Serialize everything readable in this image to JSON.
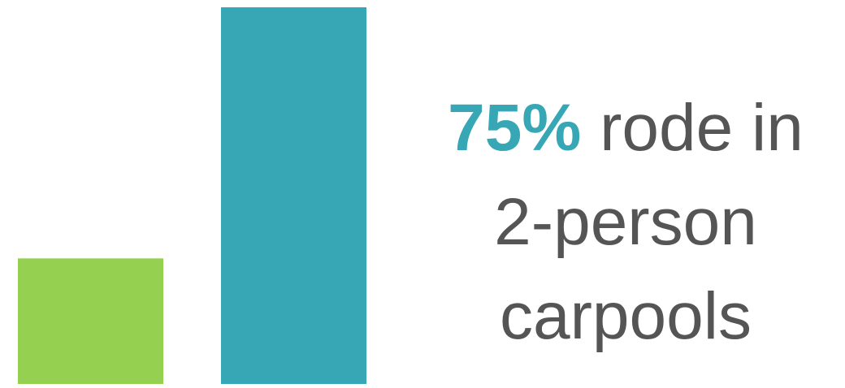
{
  "chart_data": {
    "type": "bar",
    "categories": [
      "",
      ""
    ],
    "values": [
      25,
      75
    ],
    "colors": [
      "#95d050",
      "#38a7b5"
    ],
    "ylim": [
      0,
      75
    ],
    "grid": false,
    "legend": "none",
    "title": "",
    "xlabel": "",
    "ylabel": ""
  },
  "callout": {
    "highlight": "75%",
    "line1_rest": " rode in",
    "line2": "2-person",
    "line3": "carpools"
  }
}
